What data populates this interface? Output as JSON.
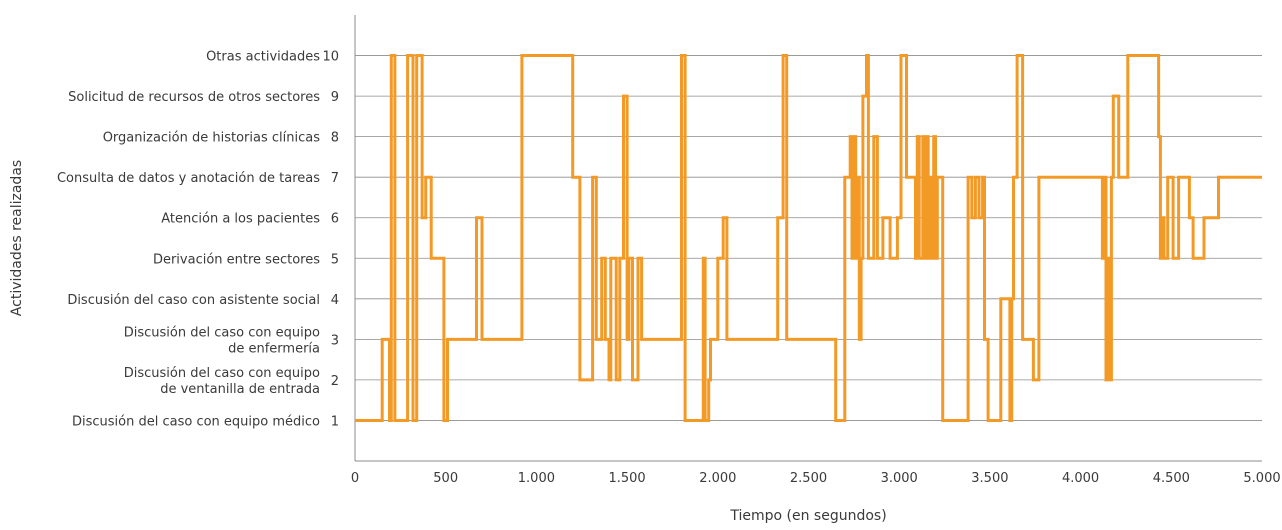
{
  "chart_data": {
    "type": "line",
    "step": true,
    "xlabel": "Tiempo (en segundos)",
    "ylabel": "Actividades realizadas",
    "xlim": [
      0,
      5000
    ],
    "ylim": [
      0,
      11
    ],
    "x_ticks": [
      0,
      500,
      1000,
      1500,
      2000,
      2500,
      3000,
      3500,
      4000,
      4500,
      5000
    ],
    "x_tick_labels": [
      "0",
      "500",
      "1.000",
      "1.500",
      "2.000",
      "2.500",
      "3.000",
      "3.500",
      "4.000",
      "4.500",
      "5.000"
    ],
    "y_ticks": [
      1,
      2,
      3,
      4,
      5,
      6,
      7,
      8,
      9,
      10
    ],
    "y_category_labels": [
      {
        "value": 1,
        "lines": [
          "Discusión del caso con equipo médico"
        ]
      },
      {
        "value": 2,
        "lines": [
          "Discusión del caso con equipo",
          "de ventanilla de entrada"
        ]
      },
      {
        "value": 3,
        "lines": [
          "Discusión del caso con equipo",
          "de enfermería"
        ]
      },
      {
        "value": 4,
        "lines": [
          "Discusión del caso con asistente social"
        ]
      },
      {
        "value": 5,
        "lines": [
          "Derivación entre sectores"
        ]
      },
      {
        "value": 6,
        "lines": [
          "Atención a los pacientes"
        ]
      },
      {
        "value": 7,
        "lines": [
          "Consulta de datos y anotación de tareas"
        ]
      },
      {
        "value": 8,
        "lines": [
          "Organización de historias clínicas"
        ]
      },
      {
        "value": 9,
        "lines": [
          "Solicitud de recursos de otros sectores"
        ]
      },
      {
        "value": 10,
        "lines": [
          "Otras actividades"
        ]
      }
    ],
    "grid": true,
    "line_color": "#f39a26",
    "series": [
      {
        "x": [
          0,
          150,
          190,
          200,
          220,
          290,
          320,
          340,
          370,
          390,
          420,
          440,
          490,
          500,
          510,
          670,
          700,
          920,
          1200,
          1240,
          1310,
          1330,
          1360,
          1380,
          1400,
          1410,
          1440,
          1460,
          1480,
          1500,
          1510,
          1530,
          1560,
          1580,
          1600,
          1610,
          1800,
          1820,
          1850,
          1860,
          1920,
          1930,
          1950,
          1960,
          2000,
          2010,
          2030,
          2050,
          2060,
          2330,
          2360,
          2380,
          2400,
          2650,
          2700,
          2720,
          2730,
          2740,
          2750,
          2760,
          2770,
          2780,
          2790,
          2800,
          2820,
          2830,
          2860,
          2880,
          2890,
          2910,
          2950,
          2990,
          3000,
          3010,
          3040,
          3090,
          3100,
          3110,
          3130,
          3140,
          3150,
          3160,
          3170,
          3180,
          3190,
          3200,
          3210,
          3240,
          3380,
          3400,
          3420,
          3440,
          3460,
          3470,
          3490,
          3560,
          3610,
          3620,
          3630,
          3650,
          3680,
          3740,
          3770,
          3900,
          4120,
          4130,
          4140,
          4150,
          4160,
          4170,
          4180,
          4210,
          4230,
          4260,
          4430,
          4440,
          4450,
          4460,
          4480,
          4490,
          4510,
          4540,
          4600,
          4620,
          4680,
          4760,
          4830,
          4880,
          4920,
          5000
        ],
        "y": [
          1,
          3,
          1,
          10,
          1,
          10,
          1,
          10,
          6,
          7,
          5,
          5,
          1,
          1,
          3,
          6,
          3,
          10,
          7,
          2,
          7,
          3,
          5,
          3,
          2,
          5,
          2,
          5,
          9,
          3,
          5,
          2,
          5,
          3,
          3,
          3,
          10,
          1,
          1,
          1,
          5,
          1,
          2,
          3,
          5,
          5,
          6,
          3,
          3,
          6,
          10,
          3,
          3,
          1,
          7,
          7,
          8,
          5,
          8,
          5,
          7,
          3,
          5,
          9,
          10,
          5,
          8,
          5,
          5,
          6,
          5,
          6,
          6,
          10,
          7,
          5,
          8,
          5,
          8,
          5,
          8,
          5,
          7,
          5,
          8,
          5,
          7,
          1,
          7,
          6,
          7,
          6,
          7,
          3,
          1,
          4,
          1,
          4,
          7,
          10,
          3,
          2,
          7,
          7,
          5,
          7,
          2,
          5,
          2,
          7,
          9,
          7,
          7,
          10,
          8,
          5,
          6,
          5,
          7,
          7,
          5,
          7,
          6,
          5,
          6,
          7,
          7,
          7,
          7,
          7
        ]
      }
    ]
  }
}
